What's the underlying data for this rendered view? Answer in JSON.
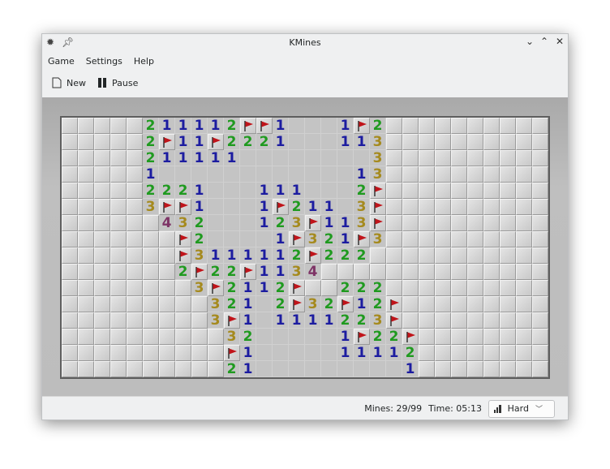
{
  "window": {
    "title": "KMines"
  },
  "menu": [
    "Game",
    "Settings",
    "Help"
  ],
  "toolbar": {
    "new_label": "New",
    "pause_label": "Pause"
  },
  "status": {
    "mines": "Mines: 29/99",
    "time": "Time: 05:13",
    "difficulty": "Hard"
  },
  "colors": {
    "n1": "#1c1ca0",
    "n2": "#1f9a1f",
    "n3": "#a58a1e",
    "n4": "#7e3466",
    "flag": "#c0141a"
  },
  "board": {
    "columns": 30,
    "rows_count": 16,
    "legend": {
      "#": "hidden",
      "F": "flag",
      ".": "revealed-empty"
    },
    "rows": [
      "#####211112FF1...1F2##########",
      "#####2F11F2221...113##########",
      "#####211111........3##########",
      "#####1............13##########",
      "#####2221...111...2F##########",
      "#####3FF1...1F211.3F##########",
      "######432...123F113F##########",
      "#######F2....1F321F3##########",
      "#######F3111112F222###########",
      "#######2F22F1134##############",
      "########3F2112F##222##########",
      "#########321.2F32F12F#########",
      "#########3F1.1111223F#########",
      "##########32.....1F22F########",
      "##########F1.....11112########",
      "##########21.........1########"
    ]
  }
}
